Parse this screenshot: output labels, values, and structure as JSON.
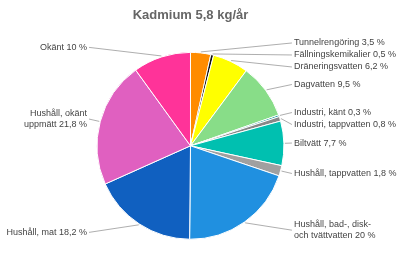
{
  "chart_data": {
    "type": "pie",
    "title": "Kadmium 5,8 kg/år",
    "categories": [
      "Tunnelrengöring 3,5 %",
      "Fällningskemikalier 0,5 %",
      "Dräneringsvatten 6,2 %",
      "Dagvatten 9,5 %",
      "Industri, känt 0,3 %",
      "Industri, tappvatten 0,8 %",
      "Biltvätt 7,7 %",
      "Hushåll, tappvatten 1,8 %",
      "Hushåll, bad-, disk-\noch tvättvatten 20 %",
      "Hushåll, mat 18,2 %",
      "Hushåll, okänt\nuppmätt 21,8 %",
      "Okänt 10 %"
    ],
    "values": [
      3.5,
      0.5,
      6.2,
      9.5,
      0.3,
      0.8,
      7.7,
      1.8,
      20.0,
      18.2,
      21.8,
      10.0
    ],
    "colors": [
      "#FF8C00",
      "#111111",
      "#FFFF00",
      "#88DD88",
      "#009090",
      "#888888",
      "#00C0B0",
      "#A0A0A0",
      "#2090E0",
      "#1060C0",
      "#E060C0",
      "#FF3399"
    ]
  }
}
